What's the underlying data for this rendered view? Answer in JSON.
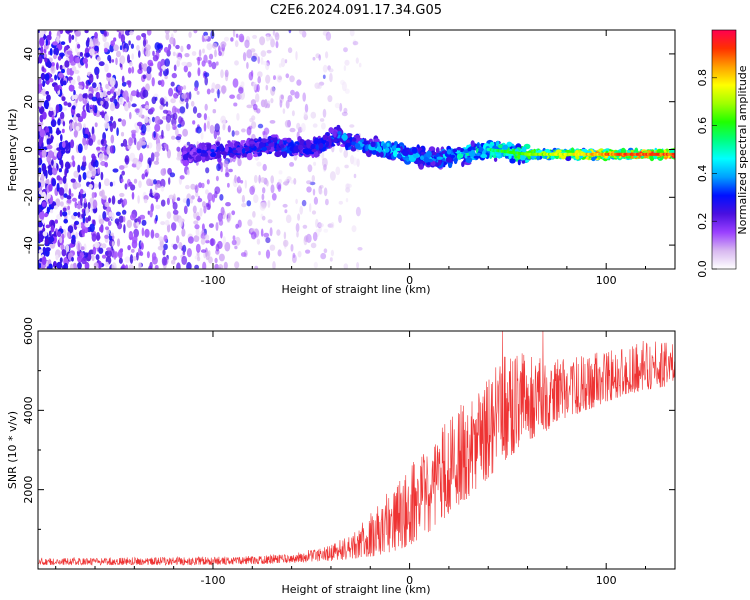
{
  "title": "C2E6.2024.091.17.34.G05",
  "chart_data": [
    {
      "type": "heatmap",
      "title": "C2E6.2024.091.17.34.G05",
      "xlabel": "Height of straight line (km)",
      "ylabel": "Frequency (Hz)",
      "xlim": [
        -189,
        135
      ],
      "ylim": [
        -50,
        50
      ],
      "xticks": [
        -100,
        0,
        100
      ],
      "yticks": [
        -40,
        -20,
        0,
        20,
        40
      ],
      "colorbar": {
        "label": "Normalized spectral amplitude",
        "range": [
          0.0,
          1.0
        ],
        "ticks": [
          0.0,
          0.2,
          0.4,
          0.6,
          0.8
        ],
        "colormap": [
          "#ffffff",
          "#d8b8f0",
          "#9a40ff",
          "#4a10e0",
          "#0010ff",
          "#00a0ff",
          "#00ffff",
          "#00ff80",
          "#20ff00",
          "#a0ff00",
          "#ffff00",
          "#ffa000",
          "#ff3000",
          "#ff0050"
        ]
      },
      "ridge": {
        "x": [
          -115,
          -100,
          -85,
          -70,
          -60,
          -50,
          -40,
          -35,
          -30,
          -20,
          -10,
          0,
          10,
          20,
          30,
          40,
          50,
          60,
          70,
          80,
          90,
          100,
          110,
          120,
          135
        ],
        "y": [
          -2,
          -1,
          0,
          2,
          1,
          0,
          4,
          6,
          3,
          1,
          0,
          -2,
          -4,
          -3,
          -1,
          0,
          -1,
          -2,
          -2,
          -2,
          -2,
          -2,
          -2,
          -2,
          -2
        ],
        "amplitude": [
          0.25,
          0.3,
          0.3,
          0.35,
          0.35,
          0.3,
          0.35,
          0.4,
          0.35,
          0.4,
          0.45,
          0.45,
          0.4,
          0.45,
          0.5,
          0.55,
          0.6,
          0.65,
          0.7,
          0.75,
          0.8,
          0.85,
          0.9,
          0.9,
          0.9
        ]
      },
      "noise_extent_x": [
        -189,
        -40
      ]
    },
    {
      "type": "line",
      "xlabel": "Height of straight line (km)",
      "ylabel": "SNR (10 * v/v)",
      "xlim": [
        -189,
        135
      ],
      "ylim": [
        0,
        6000
      ],
      "xticks": [
        -100,
        0,
        100
      ],
      "yticks": [
        2000,
        4000,
        6000
      ],
      "color": "#ee3333",
      "series": [
        {
          "envelope_x": [
            -189,
            -120,
            -80,
            -60,
            -40,
            -30,
            -20,
            -10,
            0,
            10,
            20,
            30,
            40,
            50,
            60,
            70,
            80,
            90,
            100,
            110,
            120,
            130,
            135
          ],
          "envelope_low": [
            100,
            100,
            120,
            150,
            200,
            250,
            300,
            400,
            600,
            900,
            1400,
            1800,
            2300,
            2800,
            3200,
            3500,
            3800,
            4000,
            4200,
            4400,
            4500,
            4600,
            4700
          ],
          "envelope_high": [
            280,
            300,
            330,
            400,
            600,
            900,
            1400,
            2000,
            2600,
            3200,
            3900,
            4300,
            4900,
            5600,
            5400,
            5300,
            5300,
            5400,
            5500,
            5600,
            5800,
            5800,
            5900
          ]
        }
      ]
    }
  ]
}
